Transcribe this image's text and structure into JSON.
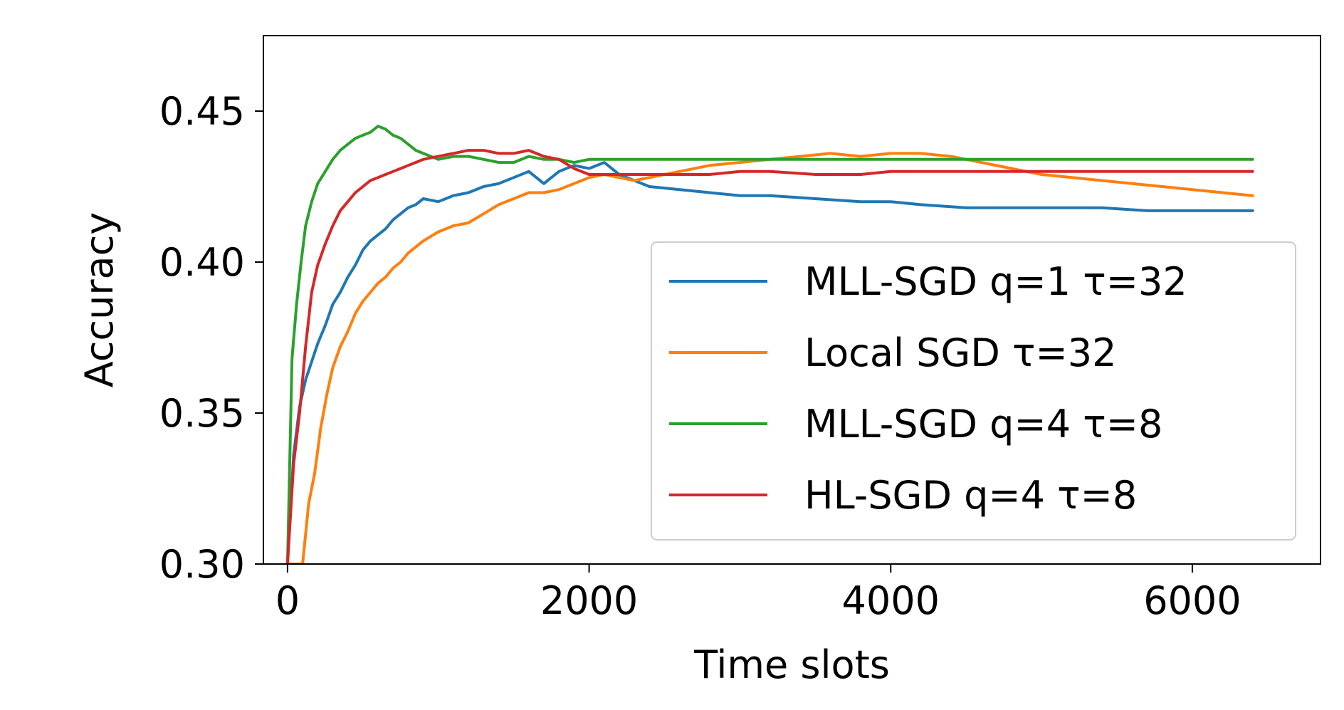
{
  "chart_data": {
    "type": "line",
    "title": "",
    "xlabel": "Time slots",
    "ylabel": "Accuracy",
    "xlim": [
      -160,
      6850
    ],
    "ylim": [
      0.3,
      0.475
    ],
    "xticks": [
      0,
      2000,
      4000,
      6000
    ],
    "xtick_labels": [
      "0",
      "2000",
      "4000",
      "6000"
    ],
    "yticks": [
      0.3,
      0.35,
      0.4,
      0.45
    ],
    "ytick_labels": [
      "0.30",
      "0.35",
      "0.40",
      "0.45"
    ],
    "grid": false,
    "legend_position": "lower-right",
    "series": [
      {
        "name": "MLL-SGD q=1 τ=32",
        "color": "#1f77b4",
        "x": [
          0,
          40,
          80,
          120,
          160,
          200,
          250,
          300,
          350,
          400,
          450,
          500,
          550,
          600,
          650,
          700,
          750,
          800,
          850,
          900,
          1000,
          1100,
          1200,
          1300,
          1400,
          1500,
          1600,
          1700,
          1800,
          1900,
          2000,
          2100,
          2200,
          2300,
          2400,
          2600,
          2800,
          3000,
          3200,
          3500,
          3800,
          4000,
          4200,
          4500,
          4800,
          5100,
          5400,
          5700,
          6000,
          6200,
          6400
        ],
        "y": [
          0.3,
          0.336,
          0.352,
          0.361,
          0.367,
          0.373,
          0.379,
          0.386,
          0.39,
          0.395,
          0.399,
          0.404,
          0.407,
          0.409,
          0.411,
          0.414,
          0.416,
          0.418,
          0.419,
          0.421,
          0.42,
          0.422,
          0.423,
          0.425,
          0.426,
          0.428,
          0.43,
          0.426,
          0.43,
          0.432,
          0.431,
          0.433,
          0.429,
          0.427,
          0.425,
          0.424,
          0.423,
          0.422,
          0.422,
          0.421,
          0.42,
          0.42,
          0.419,
          0.418,
          0.418,
          0.418,
          0.418,
          0.417,
          0.417,
          0.417,
          0.417
        ]
      },
      {
        "name": "Local SGD τ=32",
        "color": "#ff7f0e",
        "x": [
          0,
          60,
          100,
          140,
          180,
          220,
          260,
          300,
          350,
          400,
          450,
          500,
          550,
          600,
          650,
          700,
          750,
          800,
          850,
          900,
          1000,
          1100,
          1200,
          1300,
          1400,
          1500,
          1600,
          1700,
          1800,
          1900,
          2000,
          2100,
          2200,
          2300,
          2400,
          2500,
          2600,
          2800,
          3000,
          3200,
          3400,
          3600,
          3800,
          4000,
          4200,
          4400,
          4600,
          4800,
          5000,
          5200,
          5400,
          5600,
          5800,
          6000,
          6200,
          6400
        ],
        "y": [
          0.3,
          0.3,
          0.3,
          0.32,
          0.33,
          0.345,
          0.356,
          0.365,
          0.372,
          0.377,
          0.383,
          0.387,
          0.39,
          0.393,
          0.395,
          0.398,
          0.4,
          0.403,
          0.405,
          0.407,
          0.41,
          0.412,
          0.413,
          0.416,
          0.419,
          0.421,
          0.423,
          0.423,
          0.424,
          0.426,
          0.428,
          0.429,
          0.428,
          0.427,
          0.428,
          0.429,
          0.43,
          0.432,
          0.433,
          0.434,
          0.435,
          0.436,
          0.435,
          0.436,
          0.436,
          0.435,
          0.433,
          0.431,
          0.429,
          0.428,
          0.427,
          0.426,
          0.425,
          0.424,
          0.423,
          0.422
        ]
      },
      {
        "name": "MLL-SGD q=4 τ=8",
        "color": "#2ca02c",
        "x": [
          0,
          30,
          60,
          90,
          120,
          160,
          200,
          250,
          300,
          350,
          400,
          450,
          500,
          550,
          600,
          650,
          700,
          750,
          800,
          850,
          900,
          1000,
          1100,
          1200,
          1300,
          1400,
          1500,
          1600,
          1700,
          1800,
          1900,
          2000,
          2200,
          2400,
          2600,
          2800,
          3000,
          3200,
          3500,
          4000,
          4500,
          5000,
          5500,
          6000,
          6400
        ],
        "y": [
          0.3,
          0.368,
          0.386,
          0.4,
          0.412,
          0.42,
          0.426,
          0.43,
          0.434,
          0.437,
          0.439,
          0.441,
          0.442,
          0.443,
          0.445,
          0.444,
          0.442,
          0.441,
          0.439,
          0.437,
          0.436,
          0.434,
          0.435,
          0.435,
          0.434,
          0.433,
          0.433,
          0.435,
          0.434,
          0.434,
          0.433,
          0.434,
          0.434,
          0.434,
          0.434,
          0.434,
          0.434,
          0.434,
          0.434,
          0.434,
          0.434,
          0.434,
          0.434,
          0.434,
          0.434
        ]
      },
      {
        "name": "HL-SGD q=4 τ=8",
        "color": "#d62728",
        "x": [
          0,
          40,
          80,
          120,
          160,
          200,
          250,
          300,
          350,
          400,
          450,
          500,
          550,
          600,
          650,
          700,
          750,
          800,
          850,
          900,
          1000,
          1100,
          1200,
          1300,
          1400,
          1500,
          1600,
          1700,
          1800,
          1900,
          2000,
          2200,
          2400,
          2600,
          2800,
          3000,
          3200,
          3500,
          3800,
          4000,
          4200,
          4500,
          4800,
          5100,
          5400,
          5700,
          6000,
          6200,
          6400
        ],
        "y": [
          0.3,
          0.333,
          0.35,
          0.372,
          0.39,
          0.399,
          0.406,
          0.412,
          0.417,
          0.42,
          0.423,
          0.425,
          0.427,
          0.428,
          0.429,
          0.43,
          0.431,
          0.432,
          0.433,
          0.434,
          0.435,
          0.436,
          0.437,
          0.437,
          0.436,
          0.436,
          0.437,
          0.435,
          0.434,
          0.431,
          0.429,
          0.429,
          0.429,
          0.429,
          0.429,
          0.43,
          0.43,
          0.429,
          0.429,
          0.43,
          0.43,
          0.43,
          0.43,
          0.43,
          0.43,
          0.43,
          0.43,
          0.43,
          0.43
        ]
      }
    ]
  }
}
